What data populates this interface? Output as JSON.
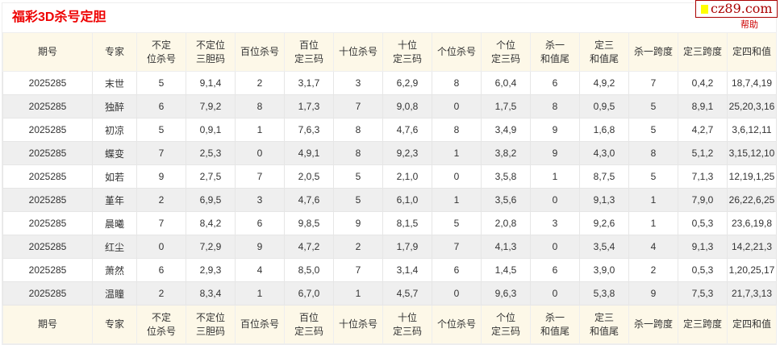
{
  "title": "福彩3D杀号定胆",
  "help": "帮助",
  "watermark": "cz89.com",
  "headers": [
    "期号",
    "专家",
    "不定\n位杀号",
    "不定位\n三胆码",
    "百位杀号",
    "百位\n定三码",
    "十位杀号",
    "十位\n定三码",
    "个位杀号",
    "个位\n定三码",
    "杀一\n和值尾",
    "定三\n和值尾",
    "杀一跨度",
    "定三跨度",
    "定四和值"
  ],
  "rows": [
    [
      "2025285",
      "末世",
      "5",
      "9,1,4",
      "2",
      "3,1,7",
      "3",
      "6,2,9",
      "8",
      "6,0,4",
      "6",
      "4,9,2",
      "7",
      "0,4,2",
      "18,7,4,19"
    ],
    [
      "2025285",
      "独醉",
      "6",
      "7,9,2",
      "8",
      "1,7,3",
      "7",
      "9,0,8",
      "0",
      "1,7,5",
      "8",
      "0,9,5",
      "5",
      "8,9,1",
      "25,20,3,16"
    ],
    [
      "2025285",
      "初凉",
      "5",
      "0,9,1",
      "1",
      "7,6,3",
      "8",
      "4,7,6",
      "8",
      "3,4,9",
      "9",
      "1,6,8",
      "5",
      "4,2,7",
      "3,6,12,11"
    ],
    [
      "2025285",
      "蝶变",
      "7",
      "2,5,3",
      "0",
      "4,9,1",
      "8",
      "9,2,3",
      "1",
      "3,8,2",
      "9",
      "4,3,0",
      "8",
      "5,1,2",
      "3,15,12,10"
    ],
    [
      "2025285",
      "如若",
      "9",
      "2,7,5",
      "7",
      "2,0,5",
      "5",
      "2,1,0",
      "0",
      "3,5,8",
      "1",
      "8,7,5",
      "5",
      "7,1,3",
      "12,19,1,25"
    ],
    [
      "2025285",
      "堇年",
      "2",
      "6,9,5",
      "3",
      "4,7,6",
      "5",
      "6,1,0",
      "1",
      "3,5,6",
      "0",
      "9,1,3",
      "1",
      "7,9,0",
      "26,22,6,25"
    ],
    [
      "2025285",
      "晨曦",
      "7",
      "8,4,2",
      "6",
      "9,8,5",
      "9",
      "8,1,5",
      "5",
      "2,0,8",
      "3",
      "9,2,6",
      "1",
      "0,5,3",
      "23,6,19,8"
    ],
    [
      "2025285",
      "红尘",
      "0",
      "7,2,9",
      "9",
      "4,7,2",
      "2",
      "1,7,9",
      "7",
      "4,1,3",
      "0",
      "3,5,4",
      "4",
      "9,1,3",
      "14,2,21,3"
    ],
    [
      "2025285",
      "萧然",
      "6",
      "2,9,3",
      "4",
      "8,5,0",
      "7",
      "3,1,4",
      "6",
      "1,4,5",
      "6",
      "3,9,0",
      "2",
      "0,5,3",
      "1,20,25,17"
    ],
    [
      "2025285",
      "温瞳",
      "2",
      "8,3,4",
      "1",
      "6,7,0",
      "1",
      "4,5,7",
      "0",
      "9,6,3",
      "0",
      "5,3,8",
      "9",
      "7,5,3",
      "21,7,3,13"
    ]
  ]
}
